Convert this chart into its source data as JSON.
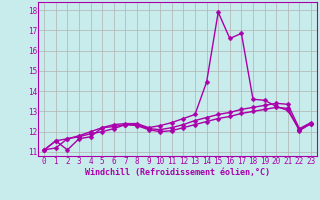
{
  "xlabel": "Windchill (Refroidissement éolien,°C)",
  "background_color": "#c8ecec",
  "grid_color": "#b0b0b0",
  "line_color": "#aa00aa",
  "spine_color": "#aa00aa",
  "x_values": [
    0,
    1,
    2,
    3,
    4,
    5,
    6,
    7,
    8,
    9,
    10,
    11,
    12,
    13,
    14,
    15,
    16,
    17,
    18,
    19,
    20,
    21,
    22,
    23
  ],
  "ylim": [
    10.8,
    18.4
  ],
  "xlim": [
    -0.5,
    23.5
  ],
  "yticks": [
    11,
    12,
    13,
    14,
    15,
    16,
    17,
    18
  ],
  "series": [
    [
      11.1,
      11.55,
      11.1,
      11.65,
      11.75,
      12.2,
      12.25,
      12.35,
      12.3,
      12.1,
      12.0,
      12.05,
      12.2,
      12.35,
      12.5,
      12.65,
      12.75,
      12.9,
      13.0,
      13.1,
      13.2,
      13.15,
      12.05,
      12.4
    ],
    [
      11.1,
      11.2,
      11.65,
      11.75,
      11.9,
      12.0,
      12.15,
      12.35,
      12.35,
      12.15,
      12.1,
      12.2,
      12.35,
      12.55,
      12.7,
      12.85,
      12.95,
      13.1,
      13.2,
      13.3,
      13.4,
      13.35,
      12.15,
      12.45
    ],
    [
      11.1,
      11.55,
      11.65,
      11.8,
      12.0,
      12.2,
      12.35,
      12.4,
      12.4,
      12.2,
      12.3,
      12.45,
      12.65,
      12.85,
      14.45,
      17.9,
      16.6,
      16.85,
      13.6,
      13.55,
      13.25,
      13.05,
      12.1,
      12.4
    ]
  ],
  "tick_fontsize": 5.5,
  "label_fontsize": 6.0,
  "linewidth": 1.0,
  "markersize": 2.5
}
